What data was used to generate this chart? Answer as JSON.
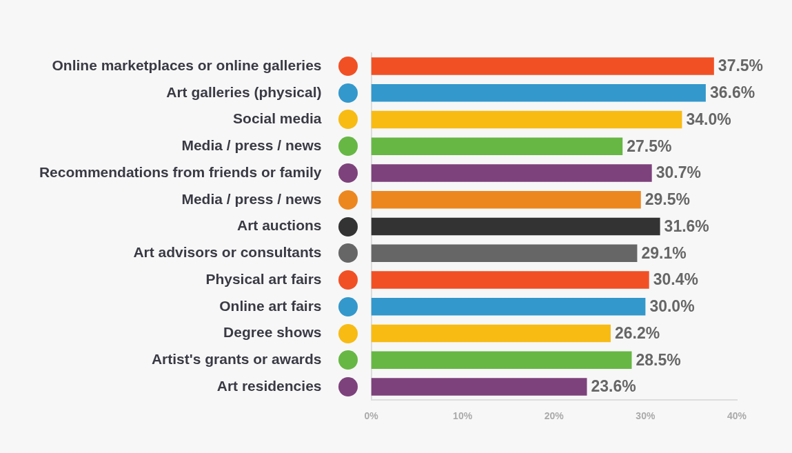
{
  "chart_data": {
    "type": "bar",
    "orientation": "horizontal",
    "categories": [
      "Online marketplaces or online galleries",
      "Art galleries (physical)",
      "Social media",
      "Media / press / news",
      "Recommendations from friends or family",
      "Media / press / news",
      "Art auctions",
      "Art advisors or consultants",
      "Physical art fairs",
      "Online art fairs",
      "Degree shows",
      "Artist's grants or awards",
      "Art residencies"
    ],
    "values": [
      37.5,
      36.6,
      34.0,
      27.5,
      30.7,
      29.5,
      31.6,
      29.1,
      30.4,
      30.0,
      26.2,
      28.5,
      23.6
    ],
    "colors": [
      "#f15025",
      "#3398cc",
      "#f7bb14",
      "#67b744",
      "#7d427b",
      "#ec871f",
      "#333333",
      "#666666",
      "#f15025",
      "#3398cc",
      "#f7bb14",
      "#67b744",
      "#7d427b"
    ],
    "value_labels": [
      "37.5%",
      "36.6%",
      "34.0%",
      "27.5%",
      "30.7%",
      "29.5%",
      "31.6%",
      "29.1%",
      "30.4%",
      "30.0%",
      "26.2%",
      "28.5%",
      "23.6%"
    ],
    "xlim": [
      0,
      40
    ],
    "xticks": [
      {
        "value": 0,
        "label": "0%"
      },
      {
        "value": 10,
        "label": "10%"
      },
      {
        "value": 20,
        "label": "20%"
      },
      {
        "value": 30,
        "label": "30%"
      },
      {
        "value": 40,
        "label": "40%"
      }
    ],
    "grid": false,
    "legend": false
  }
}
